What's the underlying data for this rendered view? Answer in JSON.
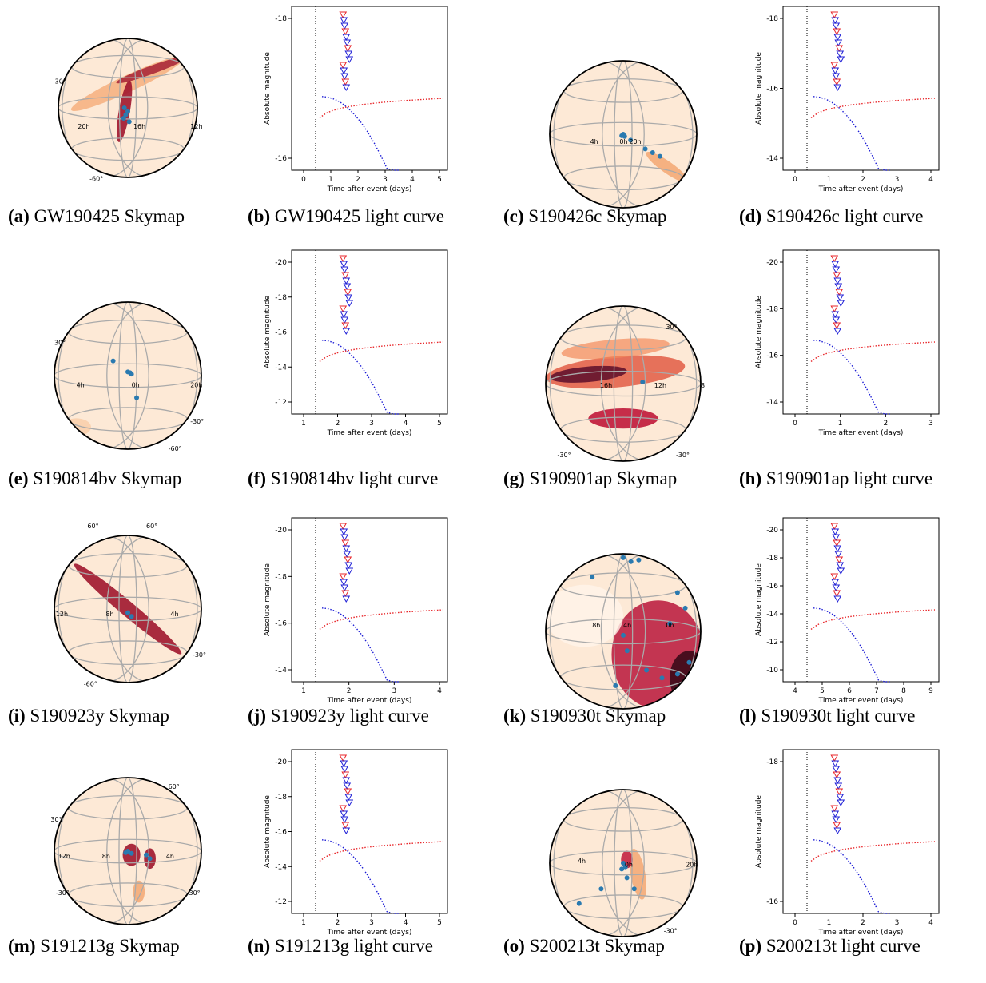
{
  "text": {
    "axis_ylabel": "Absolute magnitude",
    "axis_xlabel": "Time after event (days)"
  },
  "panels": [
    {
      "kind": "sky",
      "letter": "(a)",
      "caption": "GW190425 Skymap",
      "labels": [
        {
          "t": "30°"
        },
        {
          "t": "20h"
        },
        {
          "t": "16h"
        },
        {
          "t": "12h"
        },
        {
          "t": "-60°"
        }
      ]
    },
    {
      "kind": "lc",
      "letter": "(b)",
      "caption": "GW190425 light curve",
      "xticks": [
        "0",
        "1",
        "2",
        "3",
        "4",
        "5"
      ],
      "yticks": [
        "-18",
        "-16"
      ]
    },
    {
      "kind": "sky",
      "letter": "(c)",
      "caption": "S190426c Skymap",
      "labels": [
        {
          "t": "4h"
        },
        {
          "t": "0h"
        },
        {
          "t": "20h"
        }
      ]
    },
    {
      "kind": "lc",
      "letter": "(d)",
      "caption": "S190426c light curve",
      "xticks": [
        "0",
        "1",
        "2",
        "3",
        "4"
      ],
      "yticks": [
        "-18",
        "-16",
        "-14"
      ]
    },
    {
      "kind": "sky",
      "letter": "(e)",
      "caption": "S190814bv Skymap",
      "labels": [
        {
          "t": "30°"
        },
        {
          "t": "4h"
        },
        {
          "t": "0h"
        },
        {
          "t": "20h"
        },
        {
          "t": "-30°"
        },
        {
          "t": "-60°"
        }
      ]
    },
    {
      "kind": "lc",
      "letter": "(f)",
      "caption": "S190814bv light curve",
      "xticks": [
        "1",
        "2",
        "3",
        "4",
        "5"
      ],
      "yticks": [
        "-20",
        "-18",
        "-16",
        "-14",
        "-12"
      ]
    },
    {
      "kind": "sky",
      "letter": "(g)",
      "caption": "S190901ap Skymap",
      "labels": [
        {
          "t": "30°"
        },
        {
          "t": "16h"
        },
        {
          "t": "12h"
        },
        {
          "t": "8"
        },
        {
          "t": "-30°"
        },
        {
          "t": "-30°"
        }
      ]
    },
    {
      "kind": "lc",
      "letter": "(h)",
      "caption": "S190901ap light curve",
      "xticks": [
        "0",
        "1",
        "2",
        "3"
      ],
      "yticks": [
        "-20",
        "-18",
        "-16",
        "-14"
      ]
    },
    {
      "kind": "sky",
      "letter": "(i)",
      "caption": "S190923y Skymap",
      "labels": [
        {
          "t": "60°"
        },
        {
          "t": "60°"
        },
        {
          "t": "12h"
        },
        {
          "t": "8h"
        },
        {
          "t": "4h"
        },
        {
          "t": "-30°"
        },
        {
          "t": "-60°"
        }
      ]
    },
    {
      "kind": "lc",
      "letter": "(j)",
      "caption": "S190923y light curve",
      "xticks": [
        "1",
        "2",
        "3",
        "4"
      ],
      "yticks": [
        "-20",
        "-18",
        "-16",
        "-14"
      ]
    },
    {
      "kind": "sky",
      "letter": "(k)",
      "caption": "S190930t Skymap",
      "labels": [
        {
          "t": "8h"
        },
        {
          "t": "4h"
        },
        {
          "t": "0h"
        }
      ]
    },
    {
      "kind": "lc",
      "letter": "(l)",
      "caption": "S190930t light curve",
      "xticks": [
        "4",
        "5",
        "6",
        "7",
        "8",
        "9"
      ],
      "yticks": [
        "-20",
        "-18",
        "-16",
        "-14",
        "-12",
        "-10"
      ]
    },
    {
      "kind": "sky",
      "letter": "(m)",
      "caption": "S191213g Skymap",
      "labels": [
        {
          "t": "60°"
        },
        {
          "t": "30°"
        },
        {
          "t": "12h"
        },
        {
          "t": "8h"
        },
        {
          "t": "4h"
        },
        {
          "t": "-30°"
        },
        {
          "t": "-30°"
        }
      ]
    },
    {
      "kind": "lc",
      "letter": "(n)",
      "caption": "S191213g light curve",
      "xticks": [
        "1",
        "2",
        "3",
        "4",
        "5"
      ],
      "yticks": [
        "-20",
        "-18",
        "-16",
        "-14",
        "-12"
      ]
    },
    {
      "kind": "sky",
      "letter": "(o)",
      "caption": "S200213t Skymap",
      "labels": [
        {
          "t": "4h"
        },
        {
          "t": "0h"
        },
        {
          "t": "20h"
        },
        {
          "t": "-30°"
        }
      ]
    },
    {
      "kind": "lc",
      "letter": "(p)",
      "caption": "S200213t light curve",
      "xticks": [
        "0",
        "1",
        "2",
        "3",
        "4"
      ],
      "yticks": [
        "-18",
        "-16"
      ]
    }
  ],
  "colors": {
    "red": "#e8262a",
    "blue": "#1f1fd6",
    "sky_fill": "#fde9d6",
    "sky_dot": "#2a7ab0",
    "grid": "#aaaaaa"
  }
}
